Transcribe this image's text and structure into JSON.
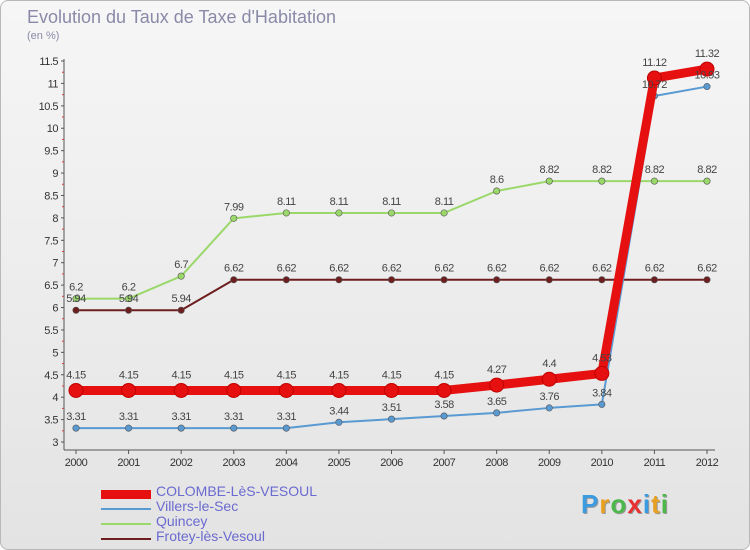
{
  "title": "Evolution du Taux de Taxe d'Habitation",
  "unit": "(en %)",
  "logo": {
    "text": "Proxiti",
    "colors": [
      "#3b9be0",
      "#e8a020",
      "#4cb84c",
      "#e83030",
      "#3b9be0",
      "#e8a020",
      "#4cb84c"
    ]
  },
  "chart_data": {
    "type": "line",
    "x": [
      "2000",
      "2001",
      "2002",
      "2003",
      "2004",
      "2005",
      "2006",
      "2007",
      "2008",
      "2009",
      "2010",
      "2011",
      "2012"
    ],
    "ylim": [
      3,
      11.5
    ],
    "yticks": [
      "3",
      "3.5",
      "4",
      "4.5",
      "5",
      "5.5",
      "6",
      "6.5",
      "7",
      "7.5",
      "8",
      "8.5",
      "9",
      "9.5",
      "10",
      "10.5",
      "11",
      "11.5"
    ],
    "xlabel": "",
    "ylabel": "",
    "grid": false,
    "legend_position": "bottom-left",
    "series": [
      {
        "name": "Frotey-lès-Vesoul",
        "color": "#6e1e1e",
        "values": [
          5.94,
          5.94,
          5.94,
          6.62,
          6.62,
          6.62,
          6.62,
          6.62,
          6.62,
          6.62,
          6.62,
          6.62,
          6.62
        ],
        "labels": [
          "5.94",
          "5.94",
          "5.94",
          "6.62",
          "6.62",
          "6.62",
          "6.62",
          "6.62",
          "6.62",
          "6.62",
          "6.62",
          "6.62",
          "6.62"
        ]
      },
      {
        "name": "Quincey",
        "color": "#9ad86a",
        "values": [
          6.2,
          6.2,
          6.7,
          7.99,
          8.11,
          8.11,
          8.11,
          8.11,
          8.6,
          8.82,
          8.82,
          8.82,
          8.82
        ],
        "labels": [
          "6.2",
          "6.2",
          "6.7",
          "7.99",
          "8.11",
          "8.11",
          "8.11",
          "8.11",
          "8.6",
          "8.82",
          "8.82",
          "8.82",
          "8.82"
        ]
      },
      {
        "name": "Villers-le-Sec",
        "color": "#5a9ad2",
        "values": [
          3.31,
          3.31,
          3.31,
          3.31,
          3.31,
          3.44,
          3.51,
          3.58,
          3.65,
          3.76,
          3.84,
          10.72,
          10.93
        ],
        "labels": [
          "3.31",
          "3.31",
          "3.31",
          "3.31",
          "3.31",
          "3.44",
          "3.51",
          "3.58",
          "3.65",
          "3.76",
          "3.84",
          "10.72",
          "10.93"
        ]
      },
      {
        "name": "COLOMBE-LèS-VESOUL",
        "color": "#e61010",
        "values": [
          4.15,
          4.15,
          4.15,
          4.15,
          4.15,
          4.15,
          4.15,
          4.15,
          4.27,
          4.4,
          4.53,
          11.12,
          11.32
        ],
        "labels": [
          "4.15",
          "4.15",
          "4.15",
          "4.15",
          "4.15",
          "4.15",
          "4.15",
          "4.15",
          "4.27",
          "4.4",
          "4.53",
          "11.12",
          "11.32"
        ]
      }
    ],
    "legend_order": [
      "COLOMBE-LèS-VESOUL",
      "Villers-le-Sec",
      "Quincey",
      "Frotey-lès-Vesoul"
    ]
  }
}
